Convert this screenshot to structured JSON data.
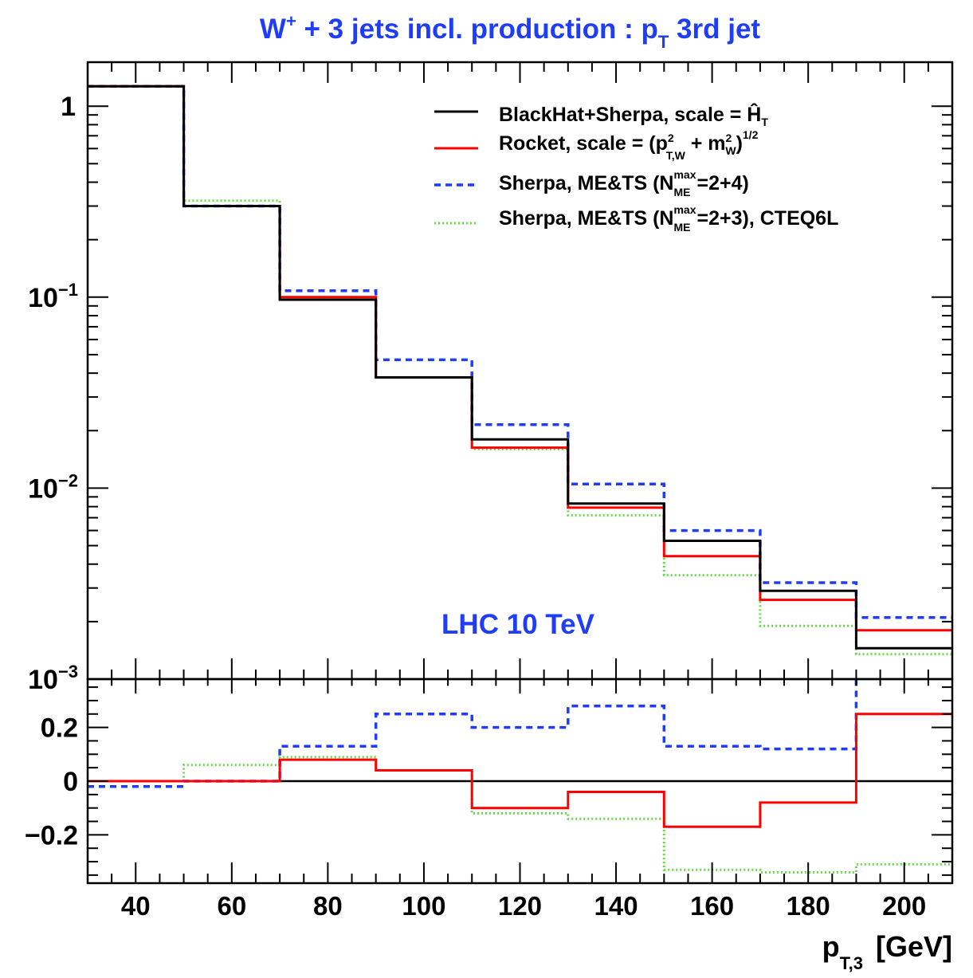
{
  "chart_data": [
    {
      "type": "line",
      "panel": "main",
      "title": "W",
      "title_sup": "+",
      "title_mid": " + 3 jets incl. production : p",
      "title_sub": "T",
      "title_end": " 3rd jet",
      "yscale": "log",
      "xlim": [
        30,
        210
      ],
      "ylim": [
        0.001,
        1.7
      ],
      "y_tick_labels": [
        {
          "value": 1,
          "base": "1",
          "exp": ""
        },
        {
          "value": 0.1,
          "base": "10",
          "exp": "−1"
        },
        {
          "value": 0.01,
          "base": "10",
          "exp": "−2"
        },
        {
          "value": 0.001,
          "base": "10",
          "exp": "−3"
        }
      ],
      "annotation": "LHC 10 TeV",
      "bin_edges": [
        30,
        50,
        70,
        90,
        110,
        130,
        150,
        170,
        190,
        210
      ],
      "series": [
        {
          "name": "BlackHat+Sherpa,  scale = Ĥ",
          "name_sub": "T",
          "color": "#000000",
          "dash": "solid",
          "values": [
            1.27,
            0.3,
            0.097,
            0.038,
            0.018,
            0.0083,
            0.0053,
            0.0029,
            0.00145
          ]
        },
        {
          "name": "Rocket,  scale = (p",
          "name_parts": {
            "sup1": "2",
            "sub1": "T,W",
            "mid": " + m",
            "sup2": "2",
            "sub2": "W",
            "end": ")",
            "sup3": "1/2"
          },
          "color": "#ff0000",
          "dash": "solid",
          "values": [
            1.27,
            0.3,
            0.1,
            0.038,
            0.0163,
            0.0079,
            0.0044,
            0.0026,
            0.0018
          ]
        },
        {
          "name": "Sherpa,  ME&TS (N",
          "name_parts": {
            "sup": "max",
            "sub": "ME",
            "end": "=2+4)"
          },
          "color": "#1f3df5",
          "dash": "dashed",
          "values": [
            1.27,
            0.3,
            0.108,
            0.047,
            0.0215,
            0.0105,
            0.006,
            0.0032,
            0.0021
          ]
        },
        {
          "name": "Sherpa,  ME&TS (N",
          "name_parts": {
            "sup": "max",
            "sub": "ME",
            "end": "=2+3),  CTEQ6L"
          },
          "color": "#66dd44",
          "dash": "dotted",
          "values": [
            1.27,
            0.32,
            0.1,
            0.038,
            0.016,
            0.0072,
            0.0035,
            0.0019,
            0.00135
          ]
        }
      ],
      "legend_position": "top-right"
    },
    {
      "type": "line",
      "panel": "ratio",
      "xlim": [
        30,
        210
      ],
      "ylim": [
        -0.38,
        0.38
      ],
      "x_ticks": [
        40,
        60,
        80,
        100,
        120,
        140,
        160,
        180,
        200
      ],
      "y_ticks": [
        0.2,
        0,
        -0.2
      ],
      "y_tick_labels": [
        "0.2",
        "0",
        "−0.2"
      ],
      "xlabel": "p",
      "xlabel_sub": "T,3",
      "xlabel_unit": "[GeV]",
      "bin_edges": [
        30,
        50,
        70,
        90,
        110,
        130,
        150,
        170,
        190,
        210
      ],
      "series": [
        {
          "name": "BlackHat+Sherpa,  scale = Ĥ",
          "color": "#000000",
          "dash": "solid",
          "values": [
            0,
            0,
            0,
            0,
            0,
            0,
            0,
            0,
            0
          ]
        },
        {
          "name": "Rocket,  scale = (p",
          "color": "#ff0000",
          "dash": "solid",
          "values": [
            0,
            0,
            0.08,
            0.04,
            -0.1,
            -0.04,
            -0.17,
            -0.08,
            0.25
          ]
        },
        {
          "name": "Sherpa,  ME&TS (N",
          "color": "#1f3df5",
          "dash": "dashed",
          "values": [
            -0.02,
            0,
            0.13,
            0.25,
            0.2,
            0.28,
            0.13,
            0.12,
            0.42
          ]
        },
        {
          "name": "Sherpa,  ME&TS (N",
          "color": "#66dd44",
          "dash": "dotted",
          "values": [
            0,
            0.06,
            0.09,
            0.04,
            -0.12,
            -0.14,
            -0.33,
            -0.34,
            -0.31
          ]
        }
      ]
    }
  ]
}
